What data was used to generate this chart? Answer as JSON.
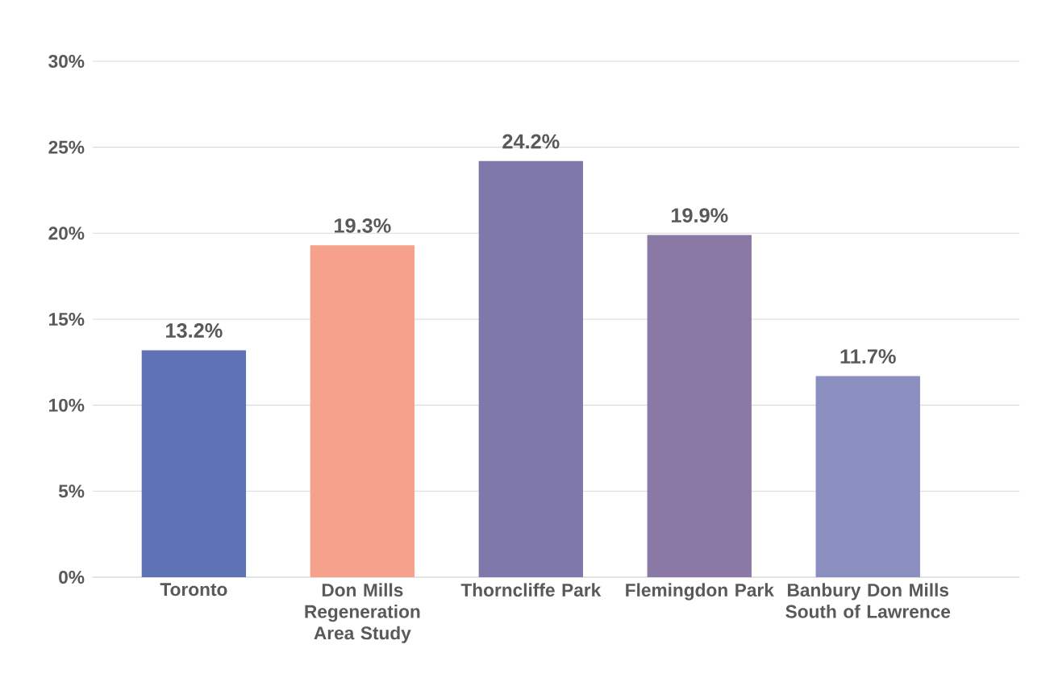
{
  "chart_data": {
    "type": "bar",
    "categories": [
      "Toronto",
      "Don Mills Regeneration Area Study",
      "Thorncliffe Park",
      "Flemingdon Park",
      "Banbury Don Mills South of Lawrence"
    ],
    "values": [
      13.2,
      19.3,
      24.2,
      19.9,
      11.7
    ],
    "colors": [
      "#5f72b5",
      "#f5a18c",
      "#7f78aa",
      "#8a78a5",
      "#8a8fbf"
    ],
    "value_labels": [
      "13.2%",
      "19.3%",
      "24.2%",
      "19.9%",
      "11.7%"
    ],
    "ylim": [
      0,
      30
    ],
    "yticks": [
      {
        "value": 0,
        "label": "0%"
      },
      {
        "value": 5,
        "label": "5%"
      },
      {
        "value": 10,
        "label": "10%"
      },
      {
        "value": 15,
        "label": "15%"
      },
      {
        "value": 20,
        "label": "20%"
      },
      {
        "value": 25,
        "label": "25%"
      },
      {
        "value": 30,
        "label": "30%"
      }
    ],
    "grid": "y"
  }
}
